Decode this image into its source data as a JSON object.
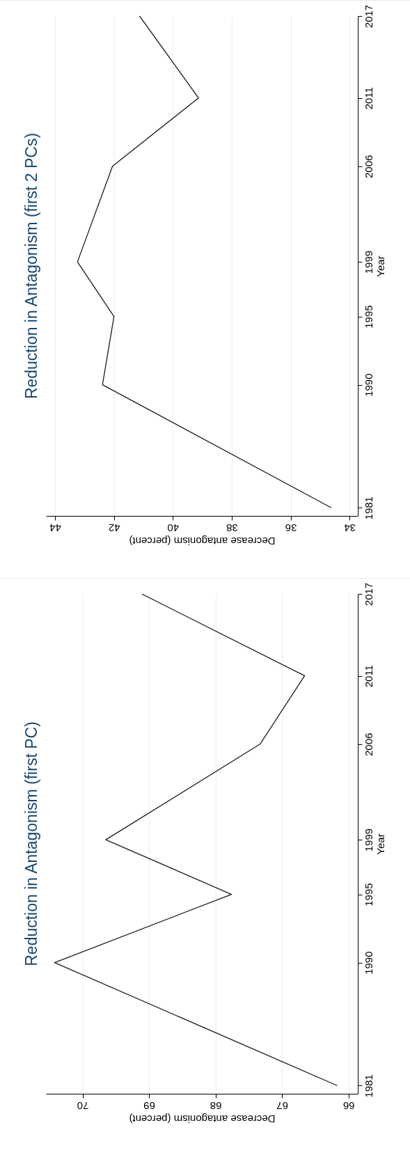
{
  "chart_data": [
    {
      "type": "line",
      "orientation": "horizontal",
      "title": "Reduction in Antagonism (first 2 PCs)",
      "xlabel": "Decrease antagonism (percent)",
      "ylabel": "Year",
      "x": [
        1981,
        1990,
        1995,
        1999,
        2006,
        2011,
        2017
      ],
      "series": [
        {
          "color": "#1a1a1a",
          "values": [
            34.62,
            42.39,
            42.0,
            43.24,
            42.05,
            39.13,
            41.13
          ]
        }
      ],
      "xlim": [
        44.31,
        33.72
      ],
      "xticks": [
        34,
        36,
        38,
        40,
        42,
        44
      ],
      "ylim": [
        1980.4,
        2017
      ],
      "yticks": [
        1981,
        1990,
        1995,
        1999,
        2006,
        2011,
        2017
      ],
      "grid": "x",
      "marker": "none"
    },
    {
      "type": "line",
      "orientation": "horizontal",
      "title": "Reduction in Antagonism (first PC)",
      "xlabel": "Decrease antagonism (percent)",
      "ylabel": "Year",
      "x": [
        1981,
        1990,
        1995,
        1999,
        2006,
        2011,
        2017
      ],
      "series": [
        {
          "color": "#1a1a1a",
          "values": [
            66.17,
            70.42,
            67.76,
            69.65,
            67.33,
            66.66,
            69.11
          ]
        }
      ],
      "xlim": [
        70.55,
        65.86
      ],
      "xticks": [
        66,
        67,
        68,
        69,
        70
      ],
      "ylim": [
        1980.4,
        2017
      ],
      "yticks": [
        1981,
        1990,
        1995,
        1999,
        2006,
        2011,
        2017
      ],
      "grid": "x",
      "marker": "none"
    }
  ]
}
